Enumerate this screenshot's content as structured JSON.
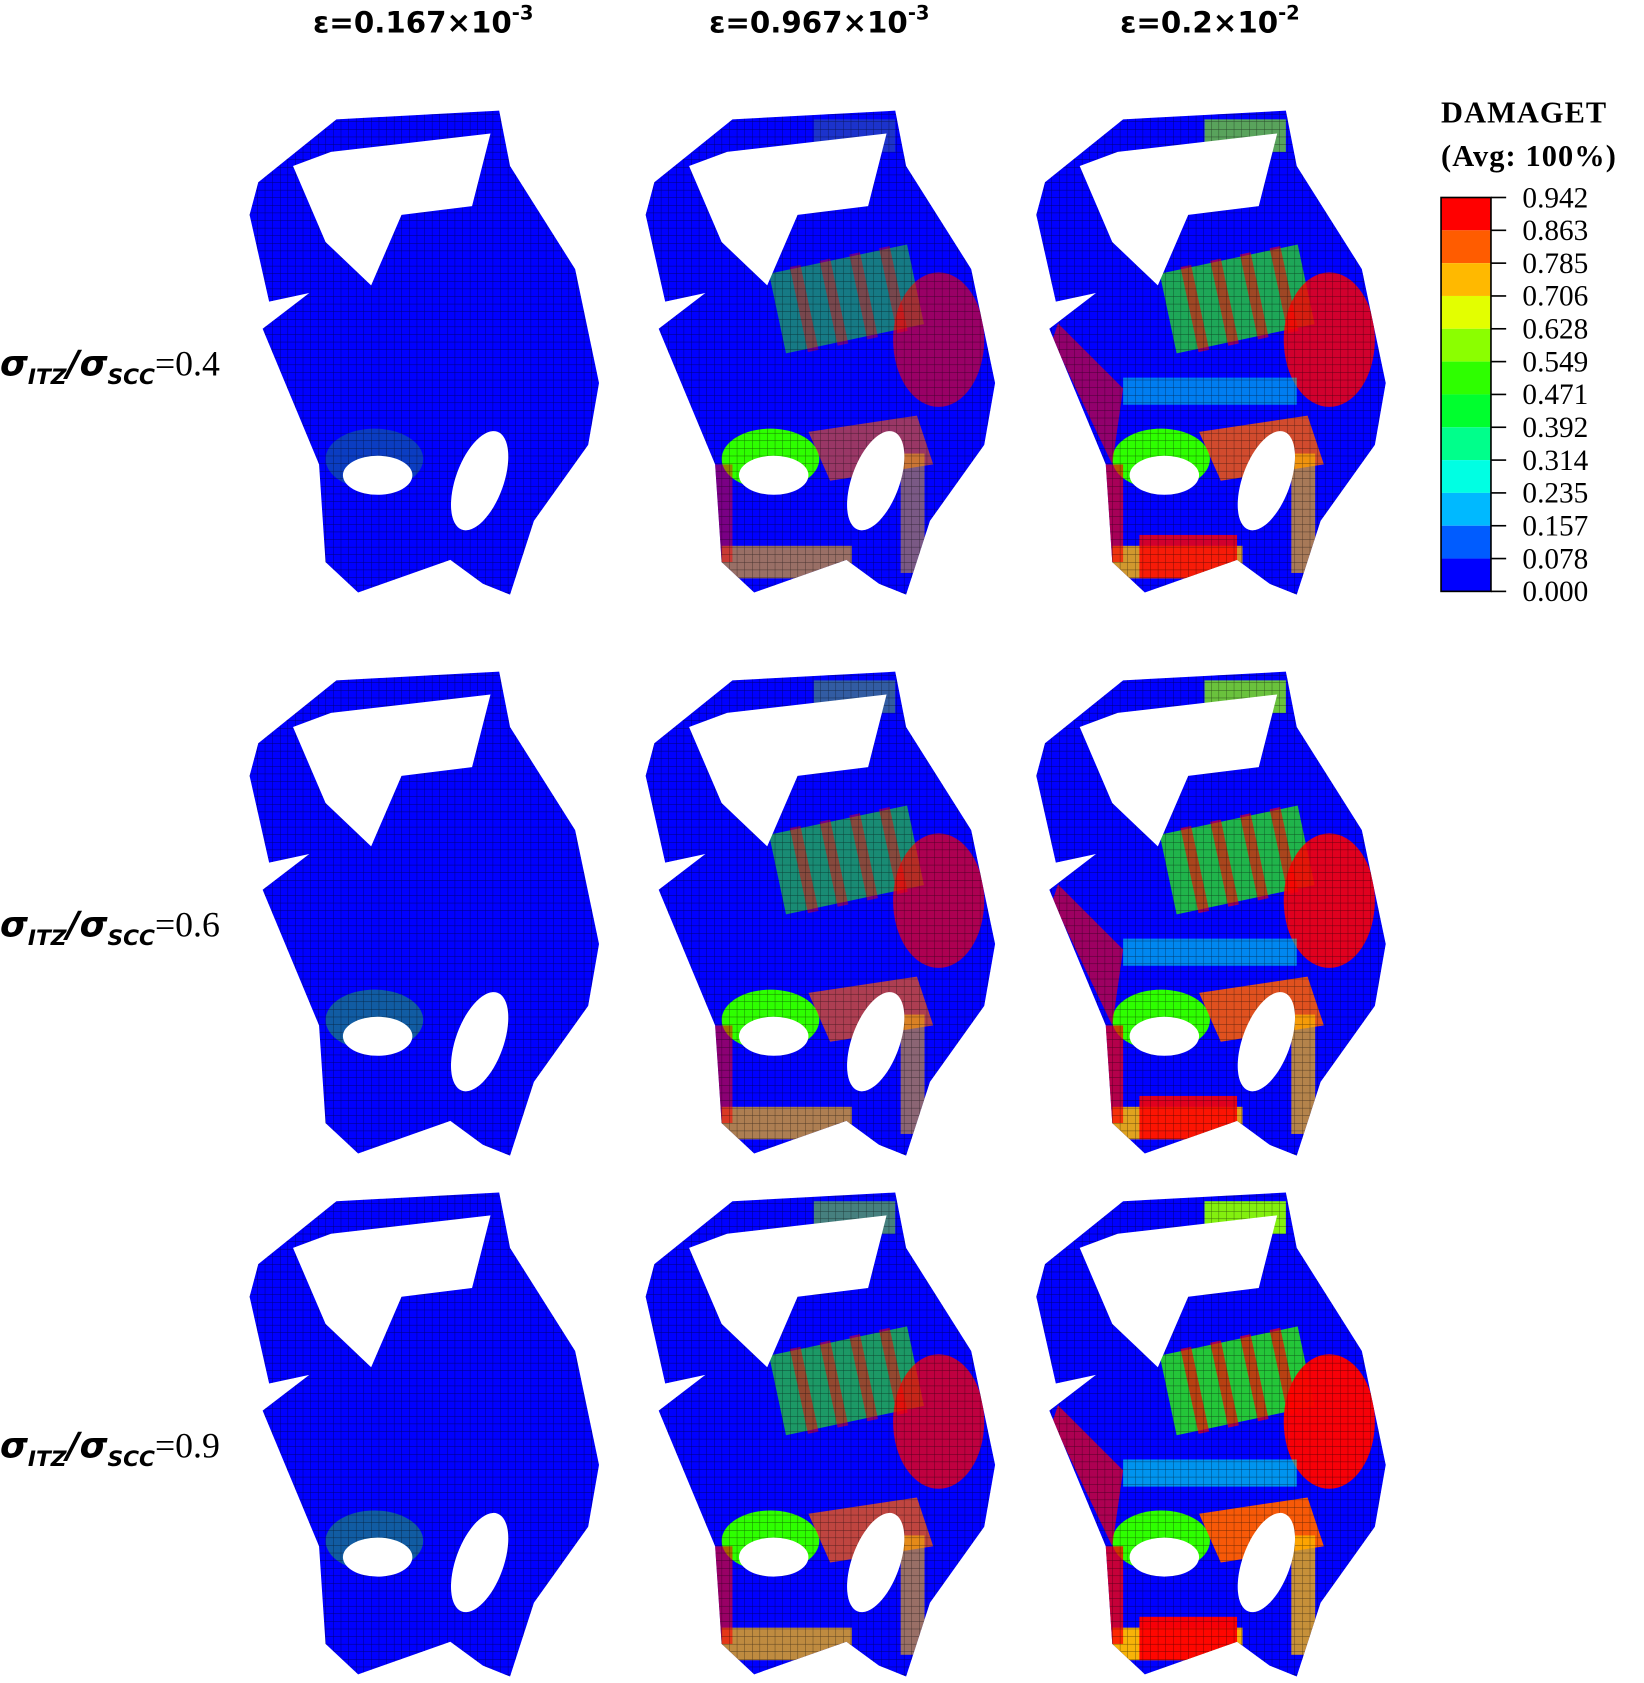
{
  "column_headers": [
    {
      "base": "ε=0.167×10",
      "exponent": "-3"
    },
    {
      "base": "ε=0.967×10",
      "exponent": "-3"
    },
    {
      "base": "ε=0.2×10",
      "exponent": "-2"
    }
  ],
  "row_labels": [
    {
      "symbol": "σ",
      "numerator_sub": "ITZ",
      "separator": "/",
      "denominator_symbol": "σ",
      "denominator_sub": "SCC",
      "ratio": "=0.4"
    },
    {
      "symbol": "σ",
      "numerator_sub": "ITZ",
      "separator": "/",
      "denominator_symbol": "σ",
      "denominator_sub": "SCC",
      "ratio": "=0.6"
    },
    {
      "symbol": "σ",
      "numerator_sub": "ITZ",
      "separator": "/",
      "denominator_symbol": "σ",
      "denominator_sub": "SCC",
      "ratio": "=0.9"
    }
  ],
  "legend": {
    "title": "DAMAGET",
    "subtitle": "(Avg: 100%)",
    "labels": [
      "0.942",
      "0.863",
      "0.785",
      "0.706",
      "0.628",
      "0.549",
      "0.471",
      "0.392",
      "0.314",
      "0.235",
      "0.157",
      "0.078",
      "0.000"
    ],
    "colors": [
      "#ff0000",
      "#ff5c00",
      "#ffb900",
      "#e3ff00",
      "#8bff00",
      "#2eff00",
      "#00ff2e",
      "#00ff8b",
      "#00ffe3",
      "#00b9ff",
      "#005cff",
      "#0000ff"
    ]
  }
}
